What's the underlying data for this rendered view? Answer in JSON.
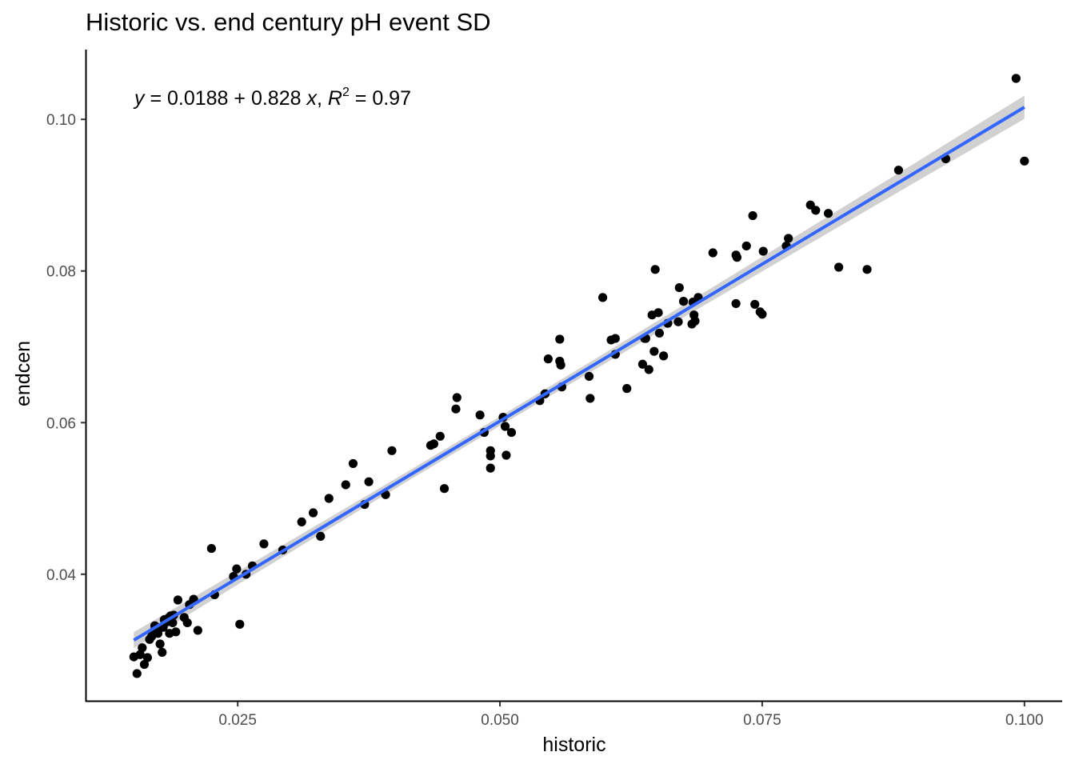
{
  "chart_data": {
    "type": "scatter",
    "title": "Historic vs. end century pH event SD",
    "xlabel": "historic",
    "ylabel": "endcen",
    "xlim": [
      0.0105,
      0.1036
    ],
    "ylim": [
      0.0232,
      0.1092
    ],
    "x_ticks": [
      0.025,
      0.05,
      0.075,
      0.1
    ],
    "x_tick_labels": [
      "0.025",
      "0.050",
      "0.075",
      "0.100"
    ],
    "y_ticks": [
      0.04,
      0.06,
      0.08,
      0.1
    ],
    "y_tick_labels": [
      "0.04",
      "0.06",
      "0.08",
      "0.10"
    ],
    "grid": false,
    "fit": {
      "method": "linear",
      "intercept": 0.0188,
      "slope": 0.828,
      "r_squared": 0.97,
      "confidence_band": true
    },
    "annotation": {
      "y_var": "y",
      "eq_mid": " = 0.0188 + 0.828 ",
      "x_var": "x",
      "comma": ", ",
      "r": "R",
      "sup": "2",
      "r_val": " = 0.97"
    },
    "colors": {
      "points": "#000000",
      "fit_line": "#3366FF",
      "band": "#BEBEBE"
    },
    "points": [
      [
        0.0151,
        0.0291
      ],
      [
        0.0154,
        0.0269
      ],
      [
        0.0157,
        0.0294
      ],
      [
        0.0159,
        0.0303
      ],
      [
        0.0161,
        0.0281
      ],
      [
        0.0164,
        0.029
      ],
      [
        0.0166,
        0.0314
      ],
      [
        0.0168,
        0.0318
      ],
      [
        0.017,
        0.0325
      ],
      [
        0.0171,
        0.0332
      ],
      [
        0.0173,
        0.0327
      ],
      [
        0.0174,
        0.0322
      ],
      [
        0.0176,
        0.0308
      ],
      [
        0.0178,
        0.0297
      ],
      [
        0.0179,
        0.033
      ],
      [
        0.018,
        0.034
      ],
      [
        0.0182,
        0.0337
      ],
      [
        0.0184,
        0.0342
      ],
      [
        0.0185,
        0.0322
      ],
      [
        0.0186,
        0.0345
      ],
      [
        0.0188,
        0.0336
      ],
      [
        0.0189,
        0.0346
      ],
      [
        0.0191,
        0.0324
      ],
      [
        0.0193,
        0.0366
      ],
      [
        0.0199,
        0.0343
      ],
      [
        0.0202,
        0.0336
      ],
      [
        0.0204,
        0.036
      ],
      [
        0.0208,
        0.0367
      ],
      [
        0.0212,
        0.0326
      ],
      [
        0.0225,
        0.0434
      ],
      [
        0.0228,
        0.0373
      ],
      [
        0.0246,
        0.0397
      ],
      [
        0.0249,
        0.0407
      ],
      [
        0.0252,
        0.0334
      ],
      [
        0.0258,
        0.04
      ],
      [
        0.0264,
        0.0411
      ],
      [
        0.0275,
        0.044
      ],
      [
        0.0293,
        0.0432
      ],
      [
        0.0311,
        0.0469
      ],
      [
        0.0322,
        0.0481
      ],
      [
        0.0329,
        0.045
      ],
      [
        0.0337,
        0.05
      ],
      [
        0.0353,
        0.0518
      ],
      [
        0.036,
        0.0546
      ],
      [
        0.0371,
        0.0492
      ],
      [
        0.0375,
        0.0522
      ],
      [
        0.0391,
        0.0505
      ],
      [
        0.0397,
        0.0563
      ],
      [
        0.0434,
        0.057
      ],
      [
        0.0437,
        0.0572
      ],
      [
        0.0443,
        0.0582
      ],
      [
        0.0447,
        0.0513
      ],
      [
        0.0458,
        0.0618
      ],
      [
        0.0459,
        0.0633
      ],
      [
        0.0481,
        0.061
      ],
      [
        0.0485,
        0.0587
      ],
      [
        0.0491,
        0.054
      ],
      [
        0.0491,
        0.0556
      ],
      [
        0.0491,
        0.0563
      ],
      [
        0.0503,
        0.0607
      ],
      [
        0.0505,
        0.0595
      ],
      [
        0.0506,
        0.0557
      ],
      [
        0.0511,
        0.0587
      ],
      [
        0.0538,
        0.0629
      ],
      [
        0.0543,
        0.0638
      ],
      [
        0.0546,
        0.0684
      ],
      [
        0.0557,
        0.071
      ],
      [
        0.0557,
        0.0681
      ],
      [
        0.0558,
        0.0676
      ],
      [
        0.0559,
        0.0647
      ],
      [
        0.0585,
        0.0661
      ],
      [
        0.0586,
        0.0632
      ],
      [
        0.0598,
        0.0765
      ],
      [
        0.0606,
        0.0709
      ],
      [
        0.061,
        0.0711
      ],
      [
        0.061,
        0.069
      ],
      [
        0.0621,
        0.0645
      ],
      [
        0.0636,
        0.0677
      ],
      [
        0.0638,
        0.0711
      ],
      [
        0.0639,
        0.0711
      ],
      [
        0.0642,
        0.067
      ],
      [
        0.0645,
        0.0742
      ],
      [
        0.0647,
        0.0694
      ],
      [
        0.0648,
        0.0802
      ],
      [
        0.0651,
        0.0745
      ],
      [
        0.0652,
        0.0718
      ],
      [
        0.0656,
        0.0688
      ],
      [
        0.066,
        0.0731
      ],
      [
        0.067,
        0.0733
      ],
      [
        0.0671,
        0.0778
      ],
      [
        0.0675,
        0.076
      ],
      [
        0.0683,
        0.073
      ],
      [
        0.0684,
        0.0759
      ],
      [
        0.0685,
        0.0742
      ],
      [
        0.0686,
        0.0734
      ],
      [
        0.0689,
        0.0765
      ],
      [
        0.0703,
        0.0824
      ],
      [
        0.0725,
        0.0757
      ],
      [
        0.0725,
        0.0821
      ],
      [
        0.0726,
        0.0818
      ],
      [
        0.0735,
        0.0833
      ],
      [
        0.0741,
        0.0873
      ],
      [
        0.0743,
        0.0756
      ],
      [
        0.0748,
        0.0746
      ],
      [
        0.075,
        0.0743
      ],
      [
        0.0751,
        0.0826
      ],
      [
        0.0773,
        0.0833
      ],
      [
        0.0775,
        0.0843
      ],
      [
        0.0796,
        0.0887
      ],
      [
        0.0801,
        0.088
      ],
      [
        0.0813,
        0.0876
      ],
      [
        0.0823,
        0.0805
      ],
      [
        0.085,
        0.0802
      ],
      [
        0.088,
        0.0933
      ],
      [
        0.0925,
        0.0948
      ],
      [
        0.0992,
        0.1054
      ],
      [
        0.1,
        0.0945
      ]
    ]
  }
}
